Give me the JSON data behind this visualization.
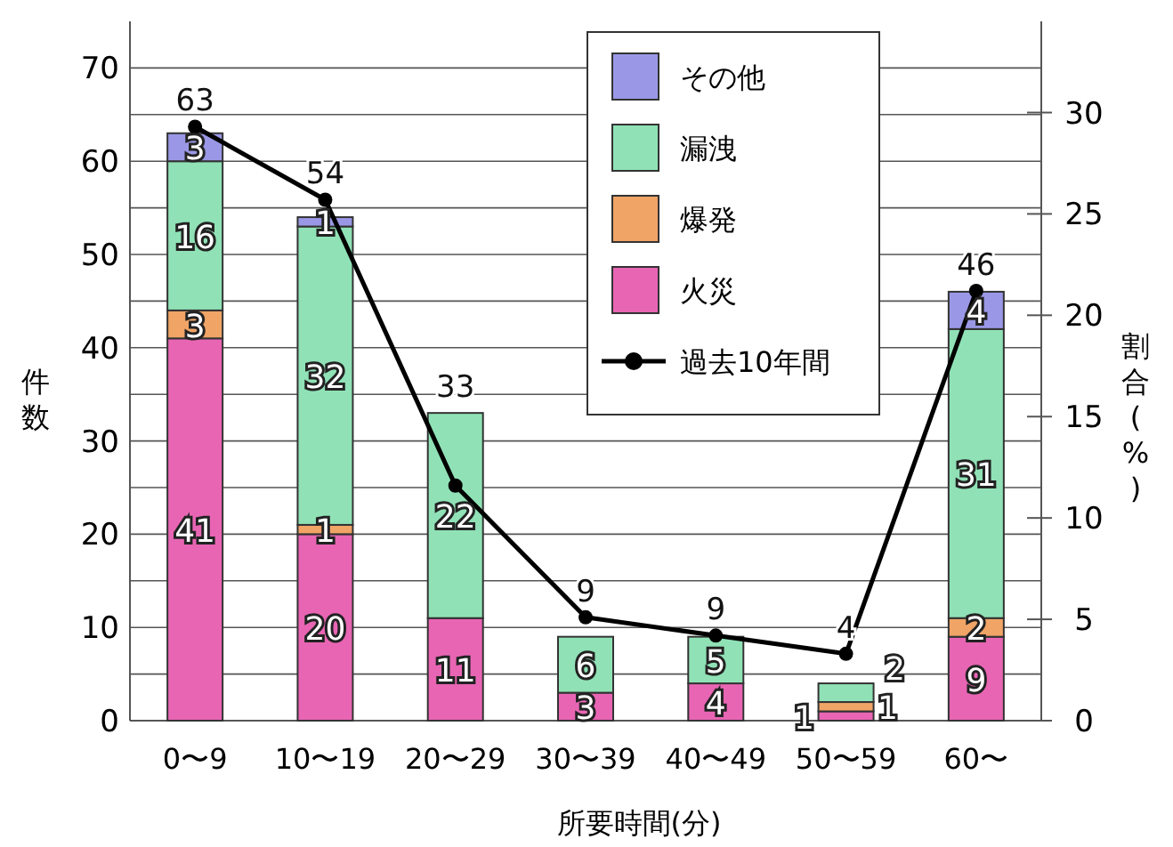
{
  "chart_data": {
    "type": "bar",
    "stacked": true,
    "xlabel": "所要時間(分)",
    "ylabel": "件数",
    "y2label": "割合(%)",
    "categories": [
      "0〜9",
      "10〜19",
      "20〜29",
      "30〜39",
      "40〜49",
      "50〜59",
      "60〜"
    ],
    "series": [
      {
        "name": "火災",
        "color": "#e865b4",
        "values": [
          41,
          20,
          11,
          3,
          4,
          1,
          9
        ],
        "value_labels": [
          "41",
          "20",
          "11",
          "3",
          "4",
          "1",
          "9"
        ]
      },
      {
        "name": "爆発",
        "color": "#f0a466",
        "values": [
          3,
          1,
          0,
          0,
          0,
          1,
          2
        ],
        "value_labels": [
          "3",
          "1",
          null,
          null,
          null,
          "1",
          "2"
        ]
      },
      {
        "name": "漏洩",
        "color": "#90e2b6",
        "values": [
          16,
          32,
          22,
          6,
          5,
          2,
          31
        ],
        "value_labels": [
          "16",
          "32",
          "22",
          "6",
          "5",
          "2",
          "31"
        ]
      },
      {
        "name": "その他",
        "color": "#9a98e6",
        "values": [
          3,
          1,
          0,
          0,
          0,
          0,
          4
        ],
        "value_labels": [
          "3",
          "1",
          null,
          null,
          null,
          null,
          "4"
        ]
      },
      {
        "name": "過去10年間",
        "type": "line",
        "axis": "y2",
        "color": "#000000",
        "marker": "circle",
        "values": [
          29.3,
          25.7,
          11.6,
          5.1,
          4.2,
          3.3,
          21.2
        ]
      }
    ],
    "totals": [
      "63",
      "54",
      "33",
      "9",
      "9",
      "4",
      "46"
    ],
    "ylim": [
      0,
      75
    ],
    "yticks": [
      0,
      10,
      20,
      30,
      40,
      50,
      60,
      70
    ],
    "y2lim": [
      0,
      34.5
    ],
    "y2ticks": [
      0,
      5,
      10,
      15,
      20,
      25,
      30
    ],
    "grid": "y",
    "legend": "top right"
  }
}
